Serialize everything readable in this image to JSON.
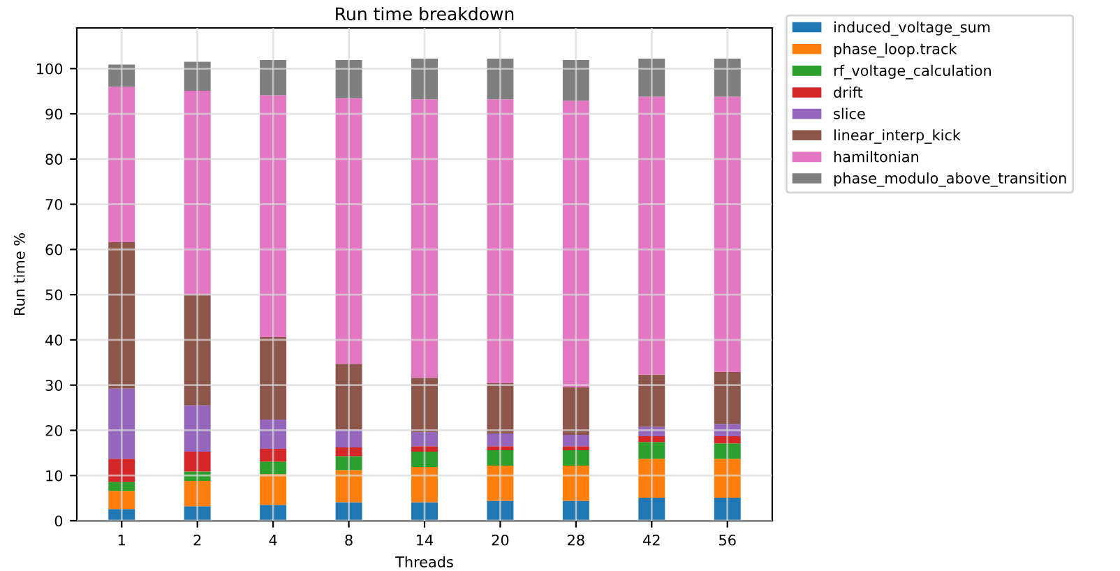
{
  "chart_data": {
    "type": "bar",
    "title": "Run time breakdown",
    "xlabel": "Threads",
    "ylabel": "Run time %",
    "categories": [
      "1",
      "2",
      "4",
      "8",
      "14",
      "20",
      "28",
      "42",
      "56"
    ],
    "stacked": true,
    "grid": true,
    "legend": "top right",
    "ylim": [
      0,
      109
    ],
    "yticks": [
      0,
      10,
      20,
      30,
      40,
      50,
      60,
      70,
      80,
      90,
      100
    ],
    "series": [
      {
        "name": "induced_voltage_sum",
        "color": "#1f77b4",
        "values": [
          2.6,
          3.2,
          3.5,
          4.1,
          4.1,
          4.4,
          4.4,
          5.1,
          5.1
        ]
      },
      {
        "name": "phase_loop.track",
        "color": "#ff7f0e",
        "values": [
          4.0,
          5.6,
          6.8,
          7.1,
          7.8,
          7.8,
          7.8,
          8.6,
          8.6
        ]
      },
      {
        "name": "rf_voltage_calculation",
        "color": "#2ca02c",
        "values": [
          2.0,
          2.1,
          2.8,
          3.1,
          3.4,
          3.4,
          3.4,
          3.7,
          3.4
        ]
      },
      {
        "name": "drift",
        "color": "#d62728",
        "values": [
          5.1,
          4.4,
          2.8,
          1.9,
          1.2,
          0.9,
          0.9,
          1.3,
          1.6
        ]
      },
      {
        "name": "slice",
        "color": "#9467bd",
        "values": [
          15.5,
          10.2,
          6.5,
          4.0,
          3.1,
          2.8,
          2.5,
          2.1,
          2.7
        ]
      },
      {
        "name": "linear_interp_kick",
        "color": "#8c564b",
        "values": [
          32.4,
          24.6,
          18.2,
          14.5,
          12.0,
          11.1,
          10.5,
          11.5,
          11.5
        ]
      },
      {
        "name": "hamiltonian",
        "color": "#e377c2",
        "values": [
          34.4,
          45.0,
          53.5,
          58.8,
          61.6,
          62.8,
          63.4,
          61.5,
          60.9
        ]
      },
      {
        "name": "phase_modulo_above_transition",
        "color": "#7f7f7f",
        "values": [
          4.9,
          6.4,
          7.8,
          8.4,
          9.0,
          9.0,
          9.0,
          8.4,
          8.4
        ]
      }
    ]
  }
}
